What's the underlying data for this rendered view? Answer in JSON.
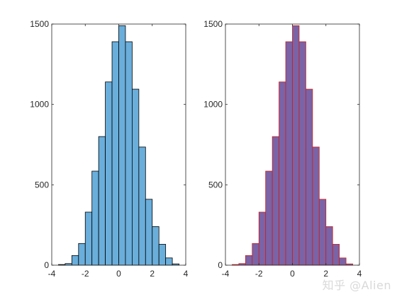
{
  "chart_data": [
    {
      "type": "bar",
      "subtype": "histogram",
      "title": "",
      "xlabel": "",
      "ylabel": "",
      "xlim": [
        -4,
        4
      ],
      "ylim": [
        0,
        1500
      ],
      "xticks": [
        -4,
        -2,
        0,
        2,
        4
      ],
      "yticks": [
        0,
        500,
        1000,
        1500
      ],
      "grid": false,
      "bin_edges": [
        -3.6,
        -3.2,
        -2.8,
        -2.4,
        -2.0,
        -1.6,
        -1.2,
        -0.8,
        -0.4,
        0.0,
        0.4,
        0.8,
        1.2,
        1.6,
        2.0,
        2.4,
        2.8,
        3.2,
        3.6
      ],
      "values": [
        4,
        10,
        60,
        135,
        330,
        585,
        800,
        1140,
        1390,
        1490,
        1390,
        1095,
        735,
        410,
        240,
        130,
        45,
        8
      ],
      "face_color": "#6aaedb",
      "edge_color": "#000000"
    },
    {
      "type": "bar",
      "subtype": "histogram",
      "title": "",
      "xlabel": "",
      "ylabel": "",
      "xlim": [
        -4,
        4
      ],
      "ylim": [
        0,
        1500
      ],
      "xticks": [
        -4,
        -2,
        0,
        2,
        4
      ],
      "yticks": [
        0,
        500,
        1000,
        1500
      ],
      "grid": false,
      "bin_edges": [
        -3.6,
        -3.2,
        -2.8,
        -2.4,
        -2.0,
        -1.6,
        -1.2,
        -0.8,
        -0.4,
        0.0,
        0.4,
        0.8,
        1.2,
        1.6,
        2.0,
        2.4,
        2.8,
        3.2,
        3.6
      ],
      "values": [
        4,
        10,
        60,
        135,
        330,
        585,
        800,
        1140,
        1390,
        1490,
        1390,
        1095,
        735,
        410,
        240,
        130,
        45,
        8
      ],
      "face_color": "#7a63a6",
      "edge_color": "#c81e1e"
    }
  ],
  "watermark": "知乎 @Alien"
}
